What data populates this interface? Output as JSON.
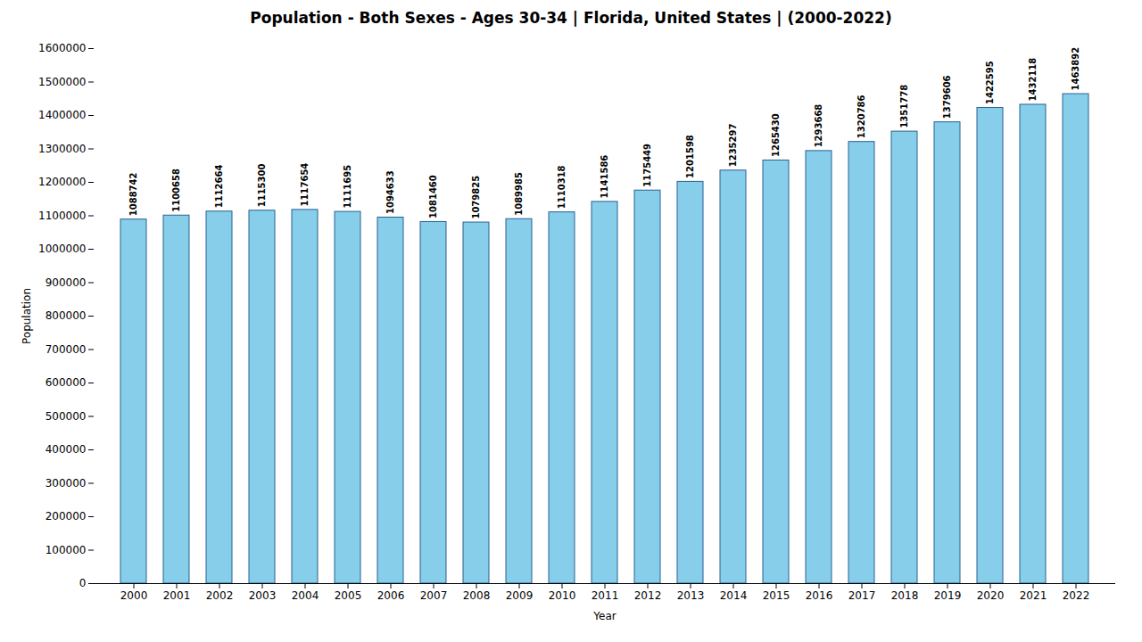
{
  "chart_data": {
    "type": "bar",
    "title": "Population - Both Sexes - Ages 30-34 | Florida, United States |  (2000-2022)",
    "xlabel": "Year",
    "ylabel": "Population",
    "categories": [
      "2000",
      "2001",
      "2002",
      "2003",
      "2004",
      "2005",
      "2006",
      "2007",
      "2008",
      "2009",
      "2010",
      "2011",
      "2012",
      "2013",
      "2014",
      "2015",
      "2016",
      "2017",
      "2018",
      "2019",
      "2020",
      "2021",
      "2022"
    ],
    "values": [
      1088742,
      1100658,
      1112664,
      1115300,
      1117654,
      1111695,
      1094633,
      1081460,
      1079825,
      1089985,
      1110318,
      1141586,
      1175449,
      1201598,
      1235297,
      1265430,
      1293668,
      1320786,
      1351778,
      1379606,
      1422595,
      1432118,
      1463892
    ],
    "color": "#87CEEB",
    "ylim": [
      0,
      1600000
    ],
    "yticks": [
      0,
      100000,
      200000,
      300000,
      400000,
      500000,
      600000,
      700000,
      800000,
      900000,
      1000000,
      1100000,
      1200000,
      1300000,
      1400000,
      1500000,
      1600000
    ],
    "data_labels": true,
    "grid": false
  }
}
